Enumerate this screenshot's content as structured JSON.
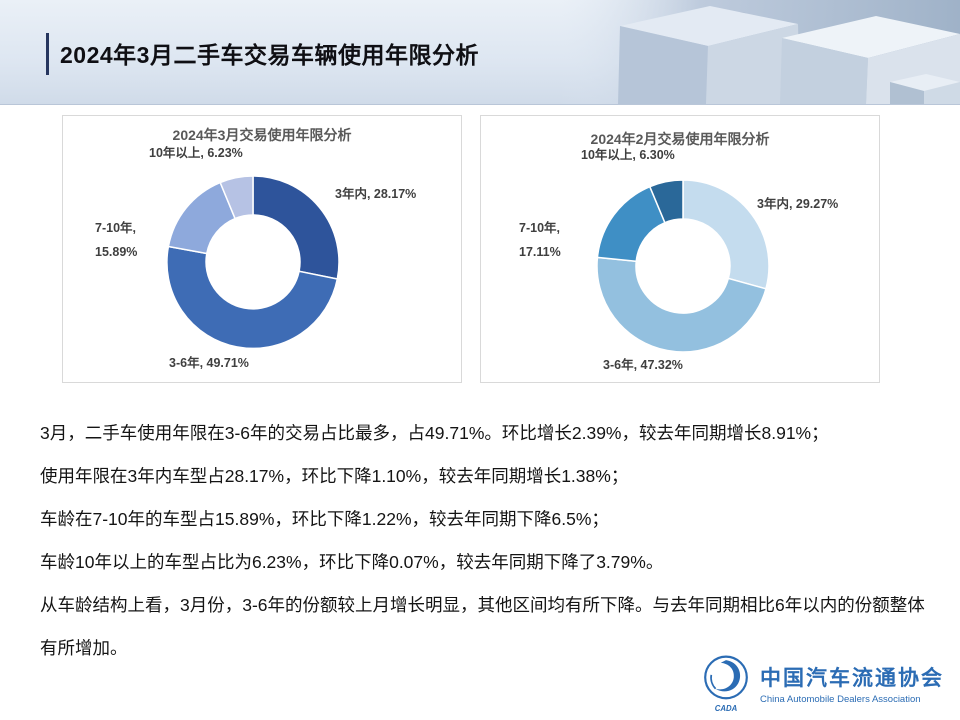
{
  "slide": {
    "title": "2024年3月二手车交易车辆使用年限分析"
  },
  "chart_data": [
    {
      "type": "pie",
      "subtype": "donut",
      "title": "2024年3月交易使用年限分析",
      "categories": [
        "3年内",
        "3-6年",
        "7-10年",
        "10年以上"
      ],
      "values": [
        28.17,
        49.71,
        15.89,
        6.23
      ],
      "unit": "%",
      "colors": [
        "#2e549b",
        "#3e6cb5",
        "#8ea9dc",
        "#b6c2e4"
      ],
      "start_angle": "top",
      "direction": "clockwise",
      "legend": false,
      "labels": {
        "top": "10年以上, 6.23%",
        "right": "3年内, 28.17%",
        "left": "7-10年,\n15.89%",
        "bottom": "3-6年, 49.71%"
      }
    },
    {
      "type": "pie",
      "subtype": "donut",
      "title": "2024年2月交易使用年限分析",
      "categories": [
        "3年内",
        "3-6年",
        "7-10年",
        "10年以上"
      ],
      "values": [
        29.27,
        47.32,
        17.11,
        6.3
      ],
      "unit": "%",
      "colors": [
        "#c4dcee",
        "#93c0df",
        "#3f8fc5",
        "#2a6899"
      ],
      "start_angle": "top",
      "direction": "clockwise",
      "legend": false,
      "labels": {
        "top": "10年以上, 6.30%",
        "right": "3年内, 29.27%",
        "left": "7-10年,\n17.11%",
        "bottom": "3-6年, 47.32%"
      }
    }
  ],
  "body": {
    "paragraphs": [
      "3月，二手车使用年限在3-6年的交易占比最多，占49.71%。环比增长2.39%，较去年同期增长8.91%；",
      "使用年限在3年内车型占28.17%，环比下降1.10%，较去年同期增长1.38%；",
      "车龄在7-10年的车型占15.89%，环比下降1.22%，较去年同期下降6.5%；",
      "车龄10年以上的车型占比为6.23%，环比下降0.07%，较去年同期下降了3.79%。",
      "从车龄结构上看，3月份，3-6年的份额较上月增长明显，其他区间均有所下降。与去年同期相比6年以内的份额整体有所增加。"
    ]
  },
  "logo": {
    "name_cn": "中国汽车流通协会",
    "name_en": "China Automobile Dealers Association",
    "badge": "CADA",
    "color": "#2b6cb4"
  }
}
